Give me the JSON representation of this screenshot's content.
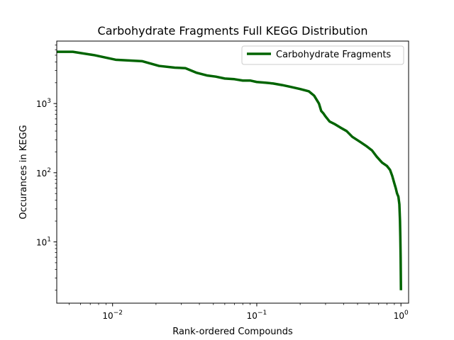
{
  "chart_data": {
    "type": "line",
    "title": "Carbohydrate Fragments Full KEGG Distribution",
    "xlabel": "Rank-ordered Compounds",
    "ylabel": "Occurances in KEGG",
    "xscale": "log",
    "yscale": "log",
    "xlim": [
      0.0041,
      1.13
    ],
    "ylim": [
      1.3,
      8000
    ],
    "x_ticks": [
      {
        "value": 0.01,
        "base": "10",
        "exp": "−2"
      },
      {
        "value": 0.1,
        "base": "10",
        "exp": "−1"
      },
      {
        "value": 1,
        "base": "10",
        "exp": "0"
      }
    ],
    "y_ticks": [
      {
        "value": 10,
        "base": "10",
        "exp": "1"
      },
      {
        "value": 100,
        "base": "10",
        "exp": "2"
      },
      {
        "value": 1000,
        "base": "10",
        "exp": "3"
      }
    ],
    "legend_position": "top-right",
    "series": [
      {
        "name": "Carbohydrate Fragments",
        "color": "#006400",
        "x": [
          0.0041,
          0.0053,
          0.0075,
          0.0105,
          0.016,
          0.021,
          0.027,
          0.032,
          0.038,
          0.045,
          0.052,
          0.06,
          0.07,
          0.08,
          0.09,
          0.1,
          0.115,
          0.13,
          0.15,
          0.17,
          0.2,
          0.23,
          0.25,
          0.27,
          0.28,
          0.29,
          0.3,
          0.32,
          0.35,
          0.38,
          0.42,
          0.46,
          0.52,
          0.58,
          0.63,
          0.68,
          0.74,
          0.8,
          0.84,
          0.87,
          0.9,
          0.92,
          0.94,
          0.96,
          0.975,
          0.985,
          0.99,
          0.995,
          1.0
        ],
        "y": [
          5600,
          5600,
          5000,
          4300,
          4100,
          3500,
          3300,
          3250,
          2800,
          2550,
          2450,
          2300,
          2250,
          2150,
          2150,
          2050,
          2000,
          1950,
          1850,
          1750,
          1620,
          1500,
          1300,
          1000,
          780,
          720,
          650,
          550,
          500,
          450,
          400,
          330,
          280,
          240,
          210,
          170,
          140,
          125,
          110,
          90,
          70,
          60,
          50,
          45,
          35,
          20,
          12,
          6,
          2
        ]
      }
    ]
  }
}
